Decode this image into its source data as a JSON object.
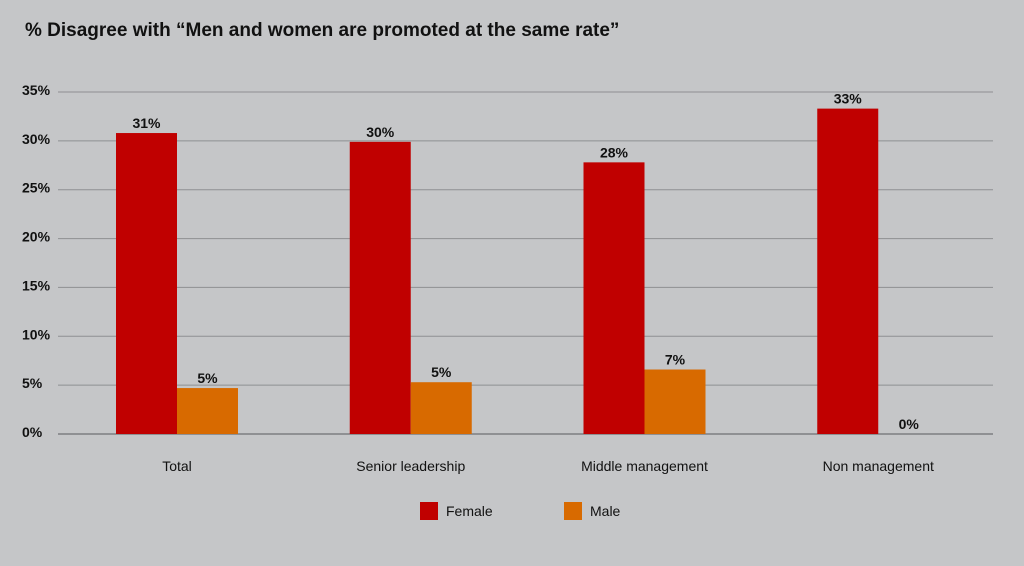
{
  "chart_data": {
    "type": "bar",
    "title": "% Disagree with “Men and women are promoted at the same rate”",
    "xlabel": "",
    "ylabel": "",
    "ylim": [
      0,
      35
    ],
    "yticks": [
      0,
      5,
      10,
      15,
      20,
      25,
      30,
      35
    ],
    "ytick_labels": [
      "0%",
      "5%",
      "10%",
      "15%",
      "20%",
      "25%",
      "30%",
      "35%"
    ],
    "grid": true,
    "legend_position": "bottom-center",
    "categories": [
      "Total",
      "Senior leadership",
      "Middle management",
      "Non management"
    ],
    "series": [
      {
        "name": "Female",
        "color": "#c00000",
        "values": [
          30.8,
          29.9,
          27.8,
          33.3
        ],
        "labels": [
          "31%",
          "30%",
          "28%",
          "33%"
        ]
      },
      {
        "name": "Male",
        "color": "#d86a00",
        "values": [
          4.7,
          5.3,
          6.6,
          0
        ],
        "labels": [
          "5%",
          "5%",
          "7%",
          "0%"
        ]
      }
    ]
  }
}
